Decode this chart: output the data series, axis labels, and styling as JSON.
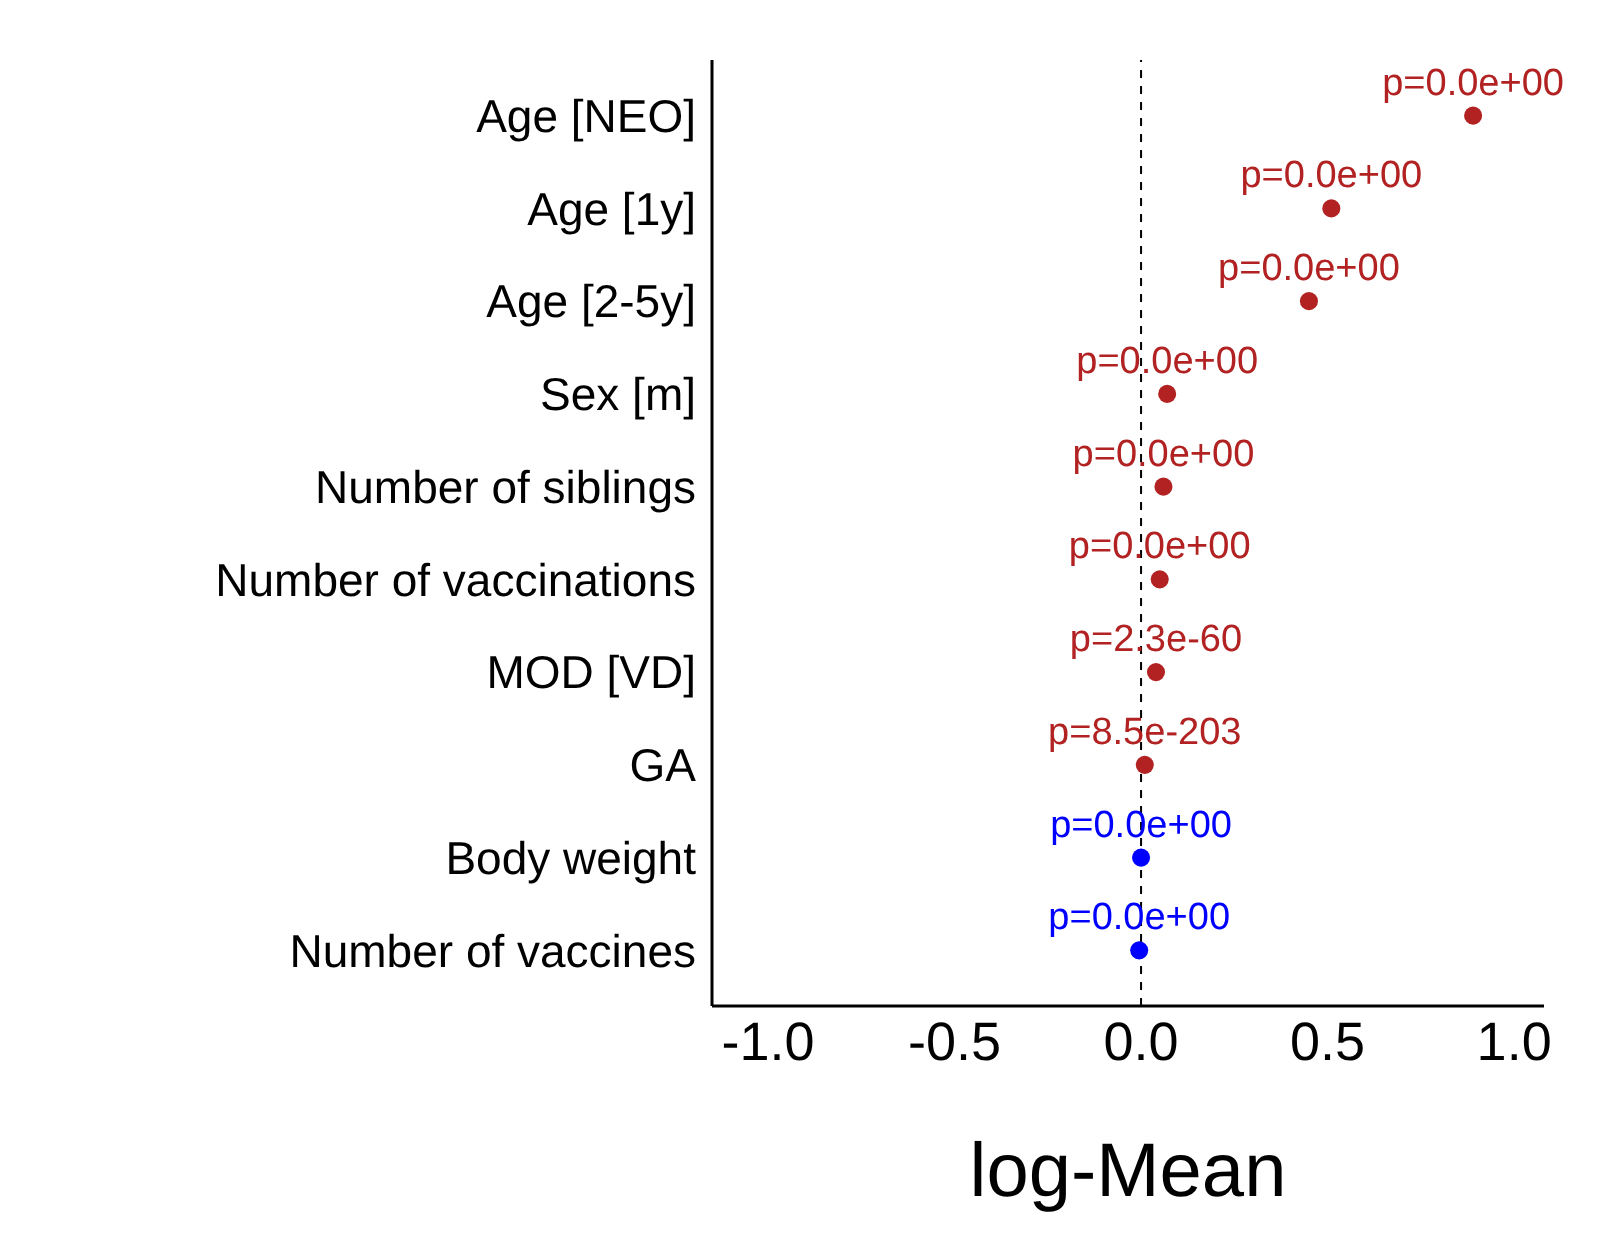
{
  "chart_data": {
    "type": "scatter",
    "orientation": "horizontal",
    "xlabel": "log-Mean",
    "categories": [
      "Age  [NEO]",
      "Age [1y]",
      "Age [2-5y]",
      "Sex [m]",
      "Number of siblings",
      "Number of vaccinations",
      "MOD [VD]",
      "GA",
      "Body weight",
      "Number of vaccines"
    ],
    "series": [
      {
        "values": [
          0.89,
          0.51,
          0.45,
          0.07,
          0.06,
          0.05,
          0.04,
          0.01,
          0.0,
          -0.005
        ],
        "colors": [
          "#b22222",
          "#b22222",
          "#b22222",
          "#b22222",
          "#b22222",
          "#b22222",
          "#b22222",
          "#b22222",
          "#0000ff",
          "#0000ff"
        ],
        "value_labels": [
          "p=0.0e+00",
          "p=0.0e+00",
          "p=0.0e+00",
          "p=0.0e+00",
          "p=0.0e+00",
          "p=0.0e+00",
          "p=2.3e-60",
          "p=8.5e-203",
          "p=0.0e+00",
          "p=0.0e+00"
        ]
      }
    ],
    "xlim": [
      -1.15,
      1.08
    ],
    "xticks": [
      {
        "value": -1,
        "label": "-1.0"
      },
      {
        "value": -0.5,
        "label": "-0.5"
      },
      {
        "value": 0,
        "label": "0.0"
      },
      {
        "value": 0.5,
        "label": "0.5"
      },
      {
        "value": 1,
        "label": "1.0"
      }
    ],
    "ref_lines": [
      {
        "axis": "x",
        "value": 0,
        "color": "#000000",
        "line_style": "dashed"
      }
    ],
    "grid": false,
    "legend": false,
    "marker": "circle"
  }
}
